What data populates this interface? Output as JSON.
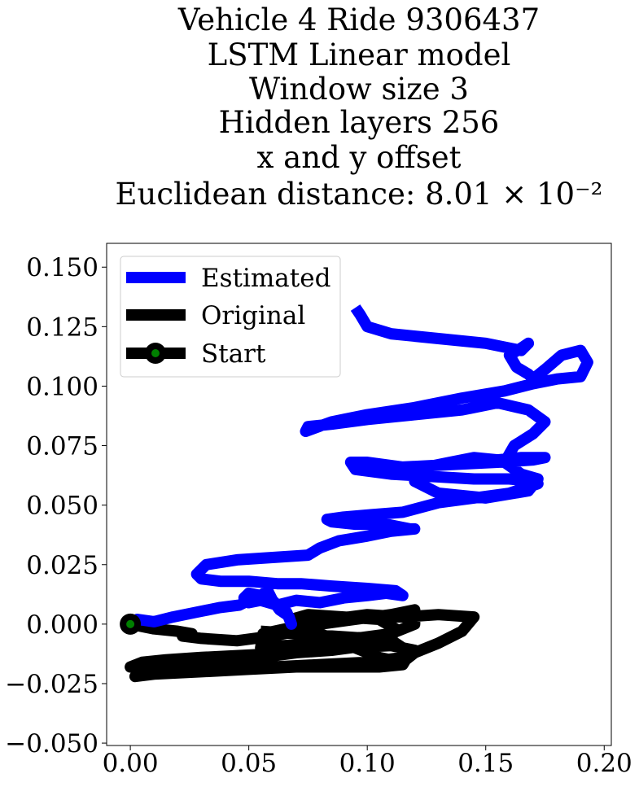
{
  "chart_data": {
    "type": "line",
    "title_lines": [
      "Vehicle 4 Ride 9306437",
      "LSTM Linear model",
      "Window size 3",
      "Hidden layers 256",
      "x and y offset",
      "Euclidean distance: 8.01 × 10⁻²"
    ],
    "xlabel": "",
    "ylabel": "",
    "xlim": [
      -0.01,
      0.203
    ],
    "ylim": [
      -0.051,
      0.16
    ],
    "x_ticks": [
      0.0,
      0.05,
      0.1,
      0.15,
      0.2
    ],
    "x_tick_labels": [
      "0.00",
      "0.05",
      "0.10",
      "0.15",
      "0.20"
    ],
    "y_ticks": [
      0.15,
      0.125,
      0.1,
      0.075,
      0.05,
      0.025,
      0.0,
      -0.025,
      -0.05
    ],
    "y_tick_labels": [
      "0.150",
      "0.125",
      "0.100",
      "0.075",
      "0.050",
      "0.025",
      "0.000",
      "−0.025",
      "−0.050"
    ],
    "grid": false,
    "legend_position": "top-left",
    "series": [
      {
        "name": "Estimated",
        "color": "#0000ff",
        "x": [
          0.0,
          0.003,
          0.01,
          0.018,
          0.028,
          0.038,
          0.046,
          0.05,
          0.055,
          0.058,
          0.06,
          0.063,
          0.066,
          0.067,
          0.068,
          0.066,
          0.062,
          0.06,
          0.058,
          0.055,
          0.05,
          0.048,
          0.05,
          0.055,
          0.062,
          0.07,
          0.08,
          0.09,
          0.1,
          0.108,
          0.115,
          0.112,
          0.1,
          0.085,
          0.072,
          0.062,
          0.05,
          0.038,
          0.03,
          0.028,
          0.032,
          0.045,
          0.06,
          0.075,
          0.08,
          0.088,
          0.1,
          0.11,
          0.12,
          0.118,
          0.108,
          0.095,
          0.085,
          0.083,
          0.09,
          0.102,
          0.115,
          0.13,
          0.145,
          0.16,
          0.172,
          0.17,
          0.16,
          0.145,
          0.128,
          0.11,
          0.095,
          0.093,
          0.1,
          0.115,
          0.135,
          0.155,
          0.17,
          0.175,
          0.165,
          0.155,
          0.145,
          0.135,
          0.125,
          0.12,
          0.13,
          0.15,
          0.168,
          0.172,
          0.165,
          0.158,
          0.162,
          0.17,
          0.175,
          0.168,
          0.155,
          0.14,
          0.12,
          0.1,
          0.085,
          0.075,
          0.074,
          0.085,
          0.1,
          0.12,
          0.14,
          0.158,
          0.17,
          0.18,
          0.19,
          0.193,
          0.19,
          0.182,
          0.175,
          0.17,
          0.168,
          0.163,
          0.16,
          0.165,
          0.168,
          0.165,
          0.15,
          0.13,
          0.11,
          0.1,
          0.097,
          0.095
        ],
        "y": [
          0.0,
          0.002,
          0.001,
          0.003,
          0.005,
          0.007,
          0.008,
          0.01,
          0.012,
          0.014,
          0.01,
          0.006,
          0.004,
          0.003,
          0.0,
          0.005,
          0.008,
          0.01,
          0.011,
          0.012,
          0.013,
          0.011,
          0.009,
          0.01,
          0.008,
          0.01,
          0.009,
          0.011,
          0.012,
          0.013,
          0.012,
          0.014,
          0.015,
          0.016,
          0.017,
          0.017,
          0.018,
          0.018,
          0.019,
          0.021,
          0.025,
          0.027,
          0.028,
          0.029,
          0.032,
          0.035,
          0.037,
          0.039,
          0.04,
          0.04,
          0.042,
          0.042,
          0.043,
          0.044,
          0.045,
          0.046,
          0.047,
          0.051,
          0.053,
          0.055,
          0.059,
          0.06,
          0.061,
          0.061,
          0.062,
          0.063,
          0.065,
          0.068,
          0.068,
          0.066,
          0.067,
          0.068,
          0.069,
          0.07,
          0.07,
          0.069,
          0.07,
          0.068,
          0.066,
          0.06,
          0.055,
          0.053,
          0.056,
          0.061,
          0.063,
          0.068,
          0.075,
          0.08,
          0.085,
          0.09,
          0.093,
          0.09,
          0.088,
          0.086,
          0.084,
          0.083,
          0.081,
          0.085,
          0.088,
          0.091,
          0.095,
          0.098,
          0.101,
          0.103,
          0.104,
          0.11,
          0.115,
          0.113,
          0.107,
          0.103,
          0.105,
          0.108,
          0.113,
          0.116,
          0.118,
          0.115,
          0.118,
          0.12,
          0.122,
          0.125,
          0.13,
          0.133
        ]
      },
      {
        "name": "Original",
        "color": "#000000",
        "x": [
          0.0,
          0.01,
          0.02,
          0.026,
          0.022,
          0.03,
          0.045,
          0.06,
          0.07,
          0.08,
          0.095,
          0.11,
          0.12,
          0.12,
          0.11,
          0.095,
          0.08,
          0.065,
          0.055,
          0.056,
          0.07,
          0.085,
          0.1,
          0.115,
          0.13,
          0.145,
          0.14,
          0.13,
          0.12,
          0.115,
          0.105,
          0.095,
          0.085,
          0.075,
          0.068,
          0.075,
          0.09,
          0.105,
          0.112,
          0.11,
          0.1,
          0.085,
          0.07,
          0.05,
          0.03,
          0.015,
          0.005,
          0.0,
          0.01,
          0.025,
          0.04,
          0.055,
          0.07,
          0.09,
          0.11,
          0.12,
          0.115,
          0.1,
          0.08,
          0.06,
          0.04,
          0.025,
          0.015,
          0.005,
          0.002,
          0.01,
          0.03,
          0.05,
          0.07,
          0.09,
          0.105,
          0.115,
          0.118,
          0.112,
          0.1,
          0.085,
          0.07,
          0.055
        ],
        "y": [
          0.0,
          -0.002,
          -0.003,
          -0.004,
          -0.005,
          -0.006,
          -0.007,
          -0.005,
          -0.003,
          0.0,
          0.002,
          0.004,
          0.006,
          0.0,
          -0.004,
          -0.006,
          -0.008,
          -0.009,
          -0.01,
          -0.004,
          -0.001,
          0.002,
          0.004,
          0.003,
          0.004,
          0.003,
          -0.003,
          -0.008,
          -0.012,
          -0.016,
          -0.014,
          -0.01,
          -0.006,
          -0.002,
          0.002,
          0.004,
          0.003,
          0.002,
          -0.002,
          -0.006,
          -0.009,
          -0.011,
          -0.012,
          -0.013,
          -0.014,
          -0.015,
          -0.016,
          -0.018,
          -0.019,
          -0.017,
          -0.015,
          -0.014,
          -0.012,
          -0.01,
          -0.009,
          -0.011,
          -0.014,
          -0.016,
          -0.017,
          -0.018,
          -0.018,
          -0.019,
          -0.02,
          -0.021,
          -0.022,
          -0.021,
          -0.02,
          -0.019,
          -0.018,
          -0.018,
          -0.018,
          -0.017,
          -0.012,
          -0.008,
          -0.006,
          -0.005,
          -0.004,
          -0.003
        ]
      }
    ],
    "start_point": {
      "name": "Start",
      "x": 0.0,
      "y": 0.0,
      "outer_color": "#000000",
      "inner_color": "#008000"
    },
    "legend_entries": [
      "Estimated",
      "Original",
      "Start"
    ]
  }
}
